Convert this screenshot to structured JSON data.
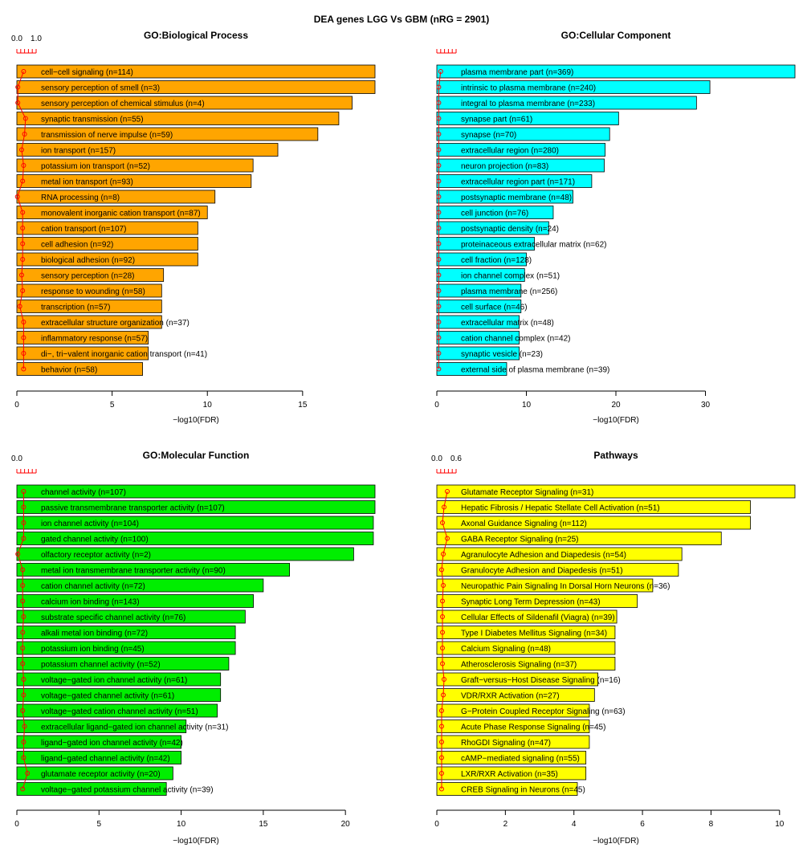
{
  "figure_title": "DEA genes LGG Vs GBM (nRG = 2901)",
  "chart_data": [
    {
      "type": "bar",
      "orientation": "horizontal",
      "title": "GO:Biological Process",
      "xlabel": "−log10(FDR)",
      "xlim": [
        0,
        18.8
      ],
      "xticks": [
        0,
        5,
        10,
        15
      ],
      "bar_color": "#FFA500",
      "ratio_scale_labels": [
        "0.0",
        "1.0"
      ],
      "ratio_scale_max": 1.0,
      "categories": [
        "cell−cell signaling (n=114)",
        "sensory perception of smell (n=3)",
        "sensory perception of chemical stimulus (n=4)",
        "synaptic transmission (n=55)",
        "transmission of nerve impulse (n=59)",
        "ion transport (n=157)",
        "potassium ion transport (n=52)",
        "metal ion transport (n=93)",
        "RNA processing (n=8)",
        "monovalent inorganic cation transport (n=87)",
        "cation transport (n=107)",
        "cell adhesion (n=92)",
        "biological adhesion (n=92)",
        "sensory perception (n=28)",
        "response to wounding (n=58)",
        "transcription (n=57)",
        "extracellular structure organization (n=37)",
        "inflammatory response (n=57)",
        "di−, tri−valent inorganic cation transport (n=41)",
        "behavior (n=58)"
      ],
      "values": [
        18.8,
        18.8,
        17.6,
        16.9,
        15.8,
        13.7,
        12.4,
        12.3,
        10.4,
        10.0,
        9.5,
        9.5,
        9.5,
        7.7,
        7.6,
        7.6,
        7.6,
        6.9,
        6.9,
        6.6
      ],
      "ratio": [
        0.35,
        0.05,
        0.05,
        0.45,
        0.4,
        0.25,
        0.35,
        0.3,
        0.03,
        0.3,
        0.3,
        0.3,
        0.3,
        0.25,
        0.3,
        0.15,
        0.35,
        0.35,
        0.35,
        0.35
      ]
    },
    {
      "type": "bar",
      "orientation": "horizontal",
      "title": "GO:Cellular Component",
      "xlabel": "−log10(FDR)",
      "xlim": [
        0,
        40.0
      ],
      "xticks": [
        0,
        10,
        20,
        30
      ],
      "bar_color": "#00FFFF",
      "ratio_scale_labels": [],
      "ratio_scale_max": 1.0,
      "categories": [
        "plasma membrane part (n=369)",
        "intrinsic to plasma membrane (n=240)",
        "integral to plasma membrane (n=233)",
        "synapse part (n=61)",
        "synapse (n=70)",
        "extracellular region (n=280)",
        "neuron projection (n=83)",
        "extracellular region part (n=171)",
        "postsynaptic membrane (n=48)",
        "cell junction (n=76)",
        "postsynaptic density (n=24)",
        "proteinaceous extracellular matrix (n=62)",
        "cell fraction (n=128)",
        "ion channel complex (n=51)",
        "plasma membrane (n=256)",
        "cell surface (n=46)",
        "extracellular matrix (n=48)",
        "cation channel complex (n=42)",
        "synaptic vesicle (n=23)",
        "external side of plasma membrane (n=39)"
      ],
      "values": [
        40.0,
        30.5,
        29.0,
        20.3,
        19.3,
        18.8,
        18.7,
        17.3,
        15.2,
        13.0,
        12.5,
        10.9,
        10.0,
        9.8,
        9.4,
        9.4,
        9.2,
        9.2,
        9.2,
        7.8
      ],
      "ratio": [
        0.2,
        0.1,
        0.1,
        0.1,
        0.1,
        0.1,
        0.1,
        0.1,
        0.1,
        0.1,
        0.1,
        0.1,
        0.1,
        0.1,
        0.1,
        0.1,
        0.1,
        0.1,
        0.1,
        0.1
      ]
    },
    {
      "type": "bar",
      "orientation": "horizontal",
      "title": "GO:Molecular Function",
      "xlabel": "−log10(FDR)",
      "xlim": [
        0,
        21.8
      ],
      "xticks": [
        0,
        5,
        10,
        15,
        20
      ],
      "bar_color": "#00EE00",
      "ratio_scale_labels": [
        "0.0"
      ],
      "ratio_scale_max": 1.0,
      "categories": [
        "channel activity (n=107)",
        "passive transmembrane transporter activity (n=107)",
        "ion channel activity (n=104)",
        "gated channel activity (n=100)",
        "olfactory receptor activity (n=2)",
        "metal ion transmembrane transporter activity (n=90)",
        "cation channel activity (n=72)",
        "calcium ion binding (n=143)",
        "substrate specific channel activity (n=76)",
        "alkali metal ion binding (n=72)",
        "potassium ion binding (n=45)",
        "potassium channel activity (n=52)",
        "voltage−gated ion channel activity (n=61)",
        "voltage−gated channel activity (n=61)",
        "voltage−gated cation channel activity (n=51)",
        "extracellular ligand−gated ion channel activity (n=31)",
        "ligand−gated ion channel activity (n=42)",
        "ligand−gated channel activity (n=42)",
        "glutamate receptor activity (n=20)",
        "voltage−gated potassium channel activity (n=39)"
      ],
      "values": [
        21.8,
        21.8,
        21.7,
        21.7,
        20.5,
        16.6,
        15.0,
        14.4,
        13.9,
        13.3,
        13.3,
        12.9,
        12.4,
        12.4,
        12.2,
        10.3,
        10.0,
        10.0,
        9.5,
        9.1
      ],
      "ratio": [
        0.35,
        0.35,
        0.35,
        0.35,
        0.05,
        0.3,
        0.3,
        0.3,
        0.35,
        0.3,
        0.3,
        0.3,
        0.35,
        0.35,
        0.3,
        0.4,
        0.35,
        0.35,
        0.55,
        0.3
      ]
    },
    {
      "type": "bar",
      "orientation": "horizontal",
      "title": "Pathways",
      "xlabel": "−log10(FDR)",
      "xlim": [
        0,
        10.45
      ],
      "xticks": [
        0,
        2,
        4,
        6,
        8,
        10
      ],
      "bar_color": "#FFFF00",
      "ratio_scale_labels": [
        "0.0",
        "0.6"
      ],
      "ratio_scale_max": 1.2,
      "categories": [
        "Glutamate Receptor Signaling (n=31)",
        "Hepatic Fibrosis / Hepatic Stellate Cell Activation (n=51)",
        "Axonal Guidance Signaling (n=112)",
        "GABA Receptor Signaling (n=25)",
        "Agranulocyte Adhesion and Diapedesis (n=54)",
        "Granulocyte Adhesion and Diapedesis (n=51)",
        "Neuropathic Pain Signaling In Dorsal Horn Neurons (n=36)",
        "Synaptic Long Term Depression (n=43)",
        "Cellular Effects of Sildenafil (Viagra) (n=39)",
        "Type I Diabetes Mellitus Signaling (n=34)",
        "Calcium Signaling (n=48)",
        "Atherosclerosis Signaling (n=37)",
        "Graft−versus−Host Disease Signaling (n=16)",
        "VDR/RXR Activation (n=27)",
        "G−Protein Coupled Receptor Signaling (n=63)",
        "Acute Phase Response Signaling (n=45)",
        "RhoGDI Signaling (n=47)",
        "cAMP−mediated signaling (n=55)",
        "LXR/RXR Activation (n=35)",
        "CREB Signaling in Neurons (n=45)"
      ],
      "values": [
        10.45,
        9.15,
        9.15,
        8.3,
        7.15,
        7.05,
        6.3,
        5.85,
        5.25,
        5.2,
        5.2,
        5.2,
        4.7,
        4.6,
        4.45,
        4.45,
        4.45,
        4.35,
        4.35,
        4.1
      ],
      "ratio": [
        0.65,
        0.45,
        0.35,
        0.65,
        0.4,
        0.3,
        0.4,
        0.35,
        0.35,
        0.35,
        0.35,
        0.35,
        0.45,
        0.4,
        0.3,
        0.3,
        0.3,
        0.3,
        0.3,
        0.3
      ]
    }
  ]
}
